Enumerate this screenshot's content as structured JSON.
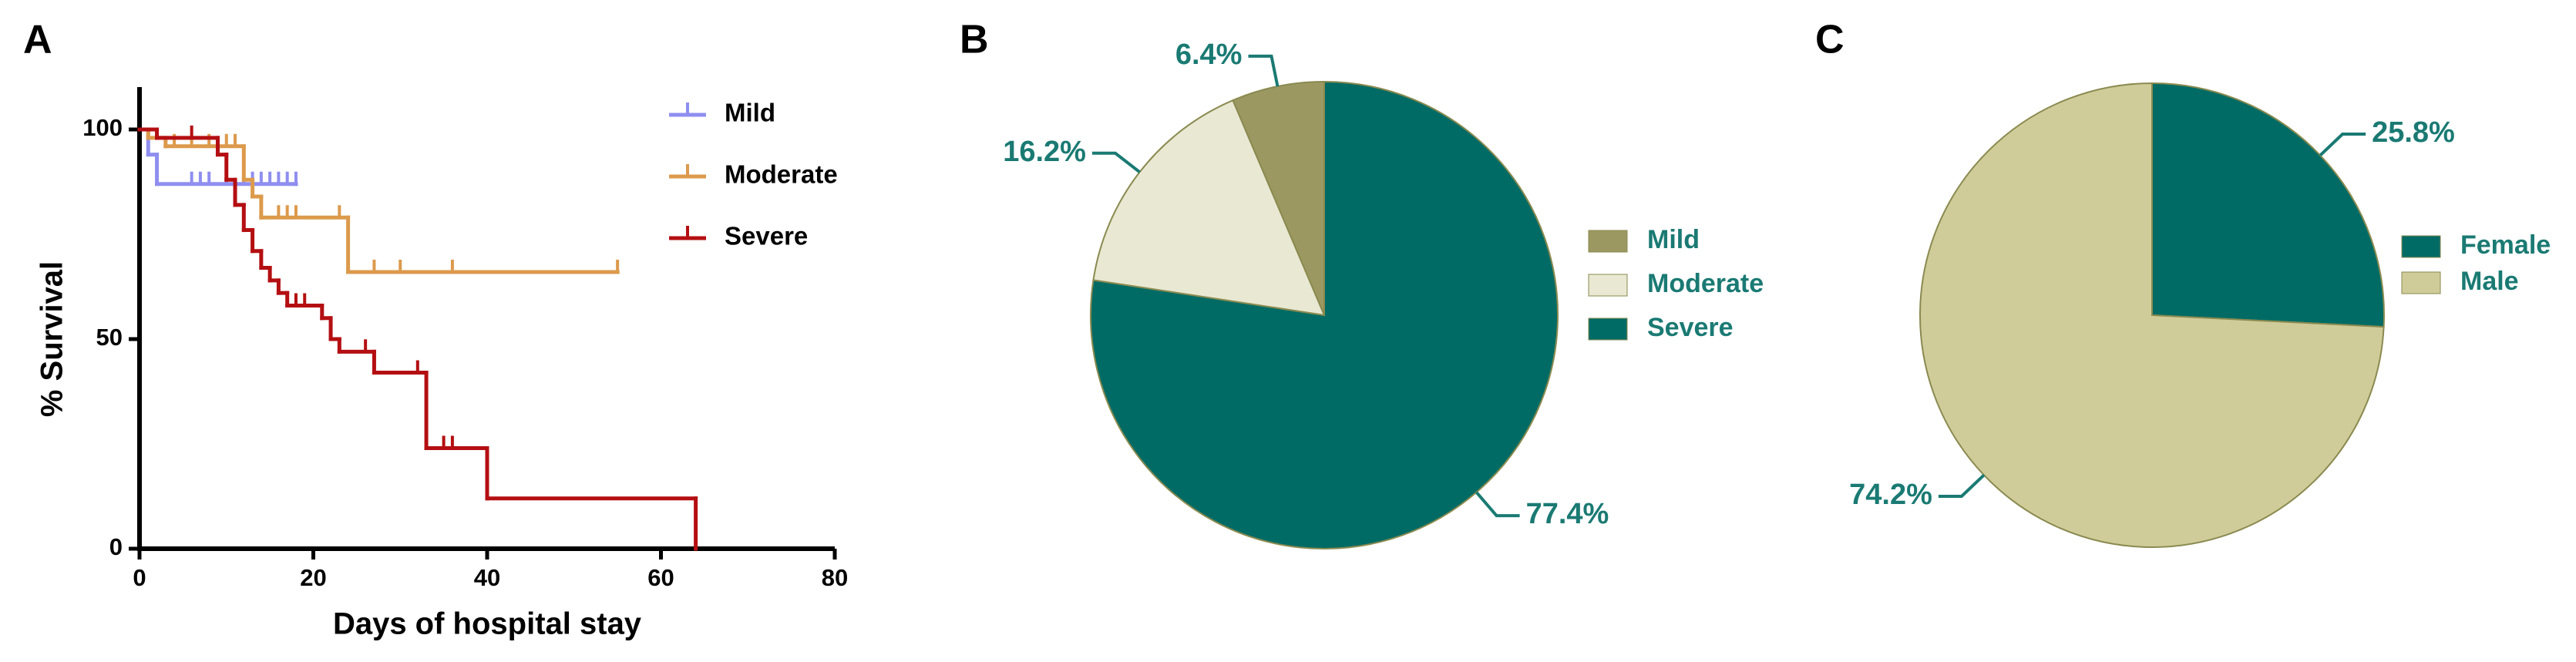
{
  "chart_data": [
    {
      "type": "survival",
      "panel": "A",
      "xlabel": "Days of hospital stay",
      "ylabel": "% Survival",
      "xlim": [
        0,
        80
      ],
      "xticks": [
        0,
        20,
        40,
        60,
        80
      ],
      "ylim": [
        0,
        100
      ],
      "yticks": [
        0,
        50,
        100
      ],
      "series": [
        {
          "name": "Mild",
          "color": "#8f8ef0",
          "x": [
            0,
            1,
            2,
            18
          ],
          "values": [
            100,
            94,
            87,
            87
          ],
          "censored": [
            6,
            7,
            8,
            10,
            12,
            13,
            14,
            15,
            16,
            17,
            18
          ]
        },
        {
          "name": "Moderate",
          "color": "#dc9a4c",
          "x": [
            0,
            1,
            3,
            12,
            13,
            14,
            24,
            55
          ],
          "values": [
            100,
            98,
            96,
            88,
            84,
            79,
            66,
            66
          ],
          "censored": [
            4,
            6,
            8,
            10,
            11,
            16,
            17,
            18,
            23,
            27,
            30,
            36,
            55
          ]
        },
        {
          "name": "Severe",
          "color": "#b40f12",
          "x": [
            0,
            2,
            9,
            10,
            11,
            12,
            13,
            14,
            15,
            16,
            17,
            21,
            22,
            23,
            27,
            33,
            40,
            64
          ],
          "values": [
            100,
            98,
            94,
            88,
            82,
            76,
            71,
            67,
            64,
            61,
            58,
            55,
            50,
            47,
            42,
            24,
            12,
            0
          ],
          "censored": [
            6,
            18,
            19,
            26,
            32,
            35,
            36
          ]
        }
      ]
    },
    {
      "type": "pie",
      "panel": "B",
      "direction": "counterclockwise",
      "categories": [
        "Mild",
        "Moderate",
        "Severe"
      ],
      "values": [
        6.4,
        16.2,
        77.4
      ],
      "value_labels": [
        "6.4%",
        "16.2%",
        "77.4%"
      ],
      "colors": [
        "#9c9862",
        "#e8e8d3",
        "#006b65"
      ]
    },
    {
      "type": "pie",
      "panel": "C",
      "direction": "clockwise",
      "categories": [
        "Female",
        "Male"
      ],
      "values": [
        25.8,
        74.2
      ],
      "value_labels": [
        "25.8%",
        "74.2%"
      ],
      "colors": [
        "#006b65",
        "#d0cc9a"
      ]
    }
  ]
}
